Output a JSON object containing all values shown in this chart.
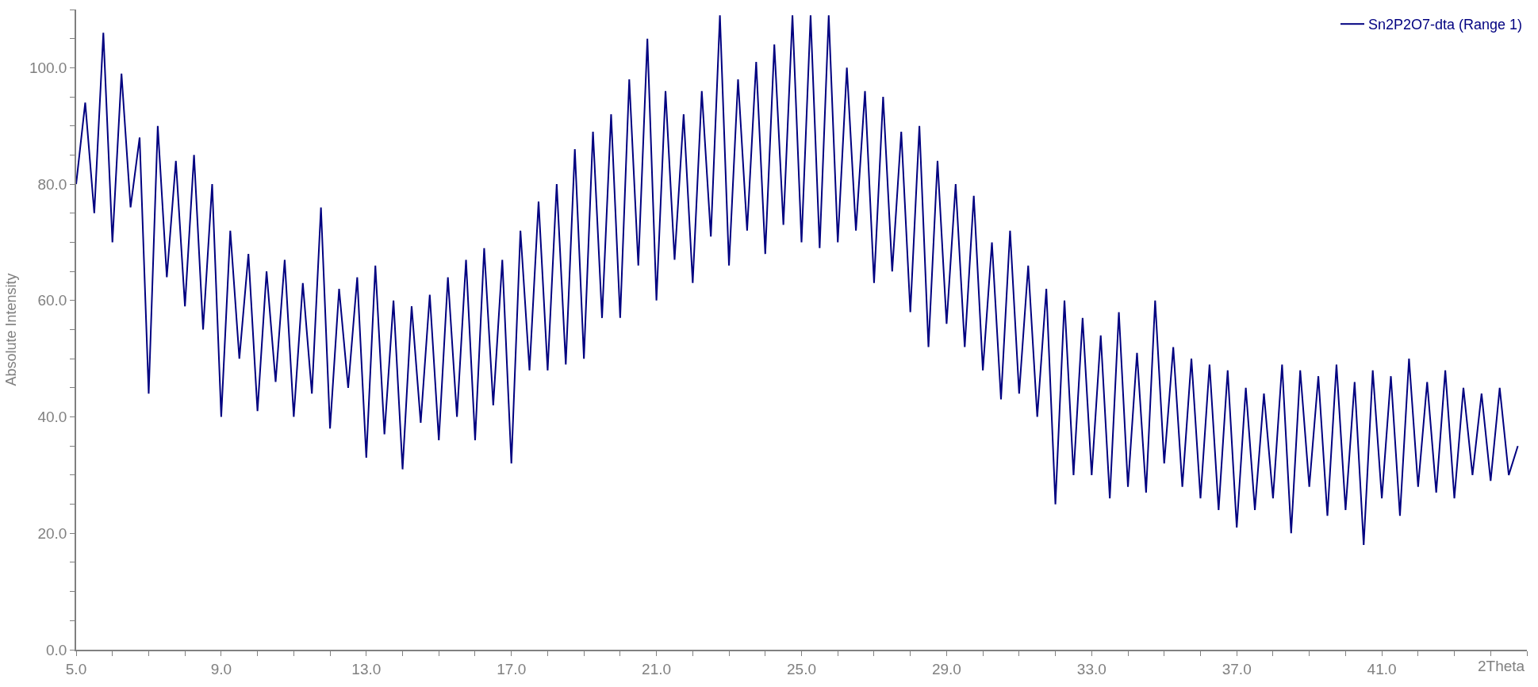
{
  "chart_data": {
    "type": "line",
    "xlabel": "2Theta",
    "ylabel": "Absolute Intensity",
    "x": [
      5,
      5.25,
      5.5,
      5.75,
      6,
      6.25,
      6.5,
      6.75,
      7,
      7.25,
      7.5,
      7.75,
      8,
      8.25,
      8.5,
      8.75,
      9,
      9.25,
      9.5,
      9.75,
      10,
      10.25,
      10.5,
      10.75,
      11,
      11.25,
      11.5,
      11.75,
      12,
      12.25,
      12.5,
      12.75,
      13,
      13.25,
      13.5,
      13.75,
      14,
      14.25,
      14.5,
      14.75,
      15,
      15.25,
      15.5,
      15.75,
      16,
      16.25,
      16.5,
      16.75,
      17,
      17.25,
      17.5,
      17.75,
      18,
      18.25,
      18.5,
      18.75,
      19,
      19.25,
      19.5,
      19.75,
      20,
      20.25,
      20.5,
      20.75,
      21,
      21.25,
      21.5,
      21.75,
      22,
      22.25,
      22.5,
      22.75,
      23,
      23.25,
      23.5,
      23.75,
      24,
      24.25,
      24.5,
      24.75,
      25,
      25.25,
      25.5,
      25.75,
      26,
      26.25,
      26.5,
      26.75,
      27,
      27.25,
      27.5,
      27.75,
      28,
      28.25,
      28.5,
      28.75,
      29,
      29.25,
      29.5,
      29.75,
      30,
      30.25,
      30.5,
      30.75,
      31,
      31.25,
      31.5,
      31.75,
      32,
      32.25,
      32.5,
      32.75,
      33,
      33.25,
      33.5,
      33.75,
      34,
      34.25,
      34.5,
      34.75,
      35,
      35.25,
      35.5,
      35.75,
      36,
      36.25,
      36.5,
      36.75,
      37,
      37.25,
      37.5,
      37.75,
      38,
      38.25,
      38.5,
      38.75,
      39,
      39.25,
      39.5,
      39.75,
      40,
      40.25,
      40.5,
      40.75,
      41,
      41.25,
      41.5,
      41.75,
      42,
      42.25,
      42.5,
      42.75,
      43,
      43.25,
      43.5,
      43.75,
      44,
      44.25,
      44.5,
      44.75
    ],
    "series": [
      {
        "name": "Sn2P2O7-dta (Range 1)",
        "color": "#000080",
        "values": [
          80,
          94,
          75,
          106,
          70,
          99,
          76,
          88,
          44,
          90,
          64,
          84,
          59,
          85,
          55,
          80,
          40,
          72,
          50,
          68,
          41,
          65,
          46,
          67,
          40,
          63,
          44,
          76,
          38,
          62,
          45,
          64,
          33,
          66,
          37,
          60,
          31,
          59,
          39,
          61,
          36,
          64,
          40,
          67,
          36,
          69,
          42,
          67,
          32,
          72,
          48,
          77,
          48,
          80,
          49,
          86,
          50,
          89,
          57,
          92,
          57,
          98,
          66,
          105,
          60,
          96,
          67,
          92,
          63,
          96,
          71,
          109,
          66,
          98,
          72,
          101,
          68,
          104,
          73,
          109,
          70,
          109,
          69,
          109,
          70,
          100,
          72,
          96,
          63,
          95,
          65,
          89,
          58,
          90,
          52,
          84,
          56,
          80,
          52,
          78,
          48,
          70,
          43,
          72,
          44,
          66,
          40,
          62,
          25,
          60,
          30,
          57,
          30,
          54,
          26,
          58,
          28,
          51,
          27,
          60,
          32,
          52,
          28,
          50,
          26,
          49,
          24,
          48,
          21,
          45,
          24,
          44,
          26,
          49,
          20,
          48,
          28,
          47,
          23,
          49,
          24,
          46,
          18,
          48,
          26,
          47,
          23,
          50,
          28,
          46,
          27,
          48,
          26,
          45,
          30,
          44,
          29,
          45,
          30,
          35
        ]
      }
    ],
    "xlim": [
      5,
      45
    ],
    "xticks": [
      {
        "value": 5,
        "label": "5.0"
      },
      {
        "value": 6,
        "label": null
      },
      {
        "value": 7,
        "label": null
      },
      {
        "value": 8,
        "label": null
      },
      {
        "value": 9,
        "label": "9.0"
      },
      {
        "value": 10,
        "label": null
      },
      {
        "value": 11,
        "label": null
      },
      {
        "value": 12,
        "label": null
      },
      {
        "value": 13,
        "label": "13.0"
      },
      {
        "value": 14,
        "label": null
      },
      {
        "value": 15,
        "label": null
      },
      {
        "value": 16,
        "label": null
      },
      {
        "value": 17,
        "label": "17.0"
      },
      {
        "value": 18,
        "label": null
      },
      {
        "value": 19,
        "label": null
      },
      {
        "value": 20,
        "label": null
      },
      {
        "value": 21,
        "label": "21.0"
      },
      {
        "value": 22,
        "label": null
      },
      {
        "value": 23,
        "label": null
      },
      {
        "value": 24,
        "label": null
      },
      {
        "value": 25,
        "label": "25.0"
      },
      {
        "value": 26,
        "label": null
      },
      {
        "value": 27,
        "label": null
      },
      {
        "value": 28,
        "label": null
      },
      {
        "value": 29,
        "label": "29.0"
      },
      {
        "value": 30,
        "label": null
      },
      {
        "value": 31,
        "label": null
      },
      {
        "value": 32,
        "label": null
      },
      {
        "value": 33,
        "label": "33.0"
      },
      {
        "value": 34,
        "label": null
      },
      {
        "value": 35,
        "label": null
      },
      {
        "value": 36,
        "label": null
      },
      {
        "value": 37,
        "label": "37.0"
      },
      {
        "value": 38,
        "label": null
      },
      {
        "value": 39,
        "label": null
      },
      {
        "value": 40,
        "label": null
      },
      {
        "value": 41,
        "label": "41.0"
      },
      {
        "value": 42,
        "label": null
      },
      {
        "value": 43,
        "label": null
      },
      {
        "value": 44,
        "label": null
      },
      {
        "value": 45,
        "label": null
      }
    ],
    "ylim": [
      0,
      110
    ],
    "yticks": [
      {
        "value": 0,
        "label": "0.0"
      },
      {
        "value": 5,
        "label": null
      },
      {
        "value": 10,
        "label": null
      },
      {
        "value": 15,
        "label": null
      },
      {
        "value": 20,
        "label": "20.0"
      },
      {
        "value": 25,
        "label": null
      },
      {
        "value": 30,
        "label": null
      },
      {
        "value": 35,
        "label": null
      },
      {
        "value": 40,
        "label": "40.0"
      },
      {
        "value": 45,
        "label": null
      },
      {
        "value": 50,
        "label": null
      },
      {
        "value": 55,
        "label": null
      },
      {
        "value": 60,
        "label": "60.0"
      },
      {
        "value": 65,
        "label": null
      },
      {
        "value": 70,
        "label": null
      },
      {
        "value": 75,
        "label": null
      },
      {
        "value": 80,
        "label": "80.0"
      },
      {
        "value": 85,
        "label": null
      },
      {
        "value": 90,
        "label": null
      },
      {
        "value": 95,
        "label": null
      },
      {
        "value": 100,
        "label": "100.0"
      },
      {
        "value": 105,
        "label": null
      },
      {
        "value": 110,
        "label": null
      }
    ],
    "legend": "top right",
    "marker": "none",
    "line_style": "solid"
  }
}
